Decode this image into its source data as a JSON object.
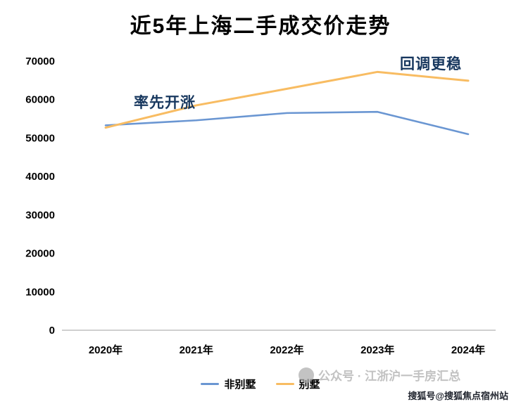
{
  "title": "近5年上海二手成交价走势",
  "annotations": {
    "rise": "率先开涨",
    "stable": "回调更稳"
  },
  "legend": {
    "non_villa_label": "非别墅",
    "villa_label": "别墅"
  },
  "watermarks": {
    "center": "公众号 · 江浙沪一手房汇总",
    "corner": "搜狐号@搜狐焦点宿州站"
  },
  "colors": {
    "non_villa": "#6A96D2",
    "villa": "#F8BC62",
    "annotation": "#17375E",
    "axis": "#BFBFBF"
  },
  "chart_data": {
    "type": "line",
    "title": "近5年上海二手成交价走势",
    "categories": [
      "2020年",
      "2021年",
      "2022年",
      "2023年",
      "2024年"
    ],
    "series": [
      {
        "name": "非别墅",
        "color": "#6A96D2",
        "values": [
          53300,
          54600,
          56500,
          56800,
          51000
        ]
      },
      {
        "name": "别墅",
        "color": "#F8BC62",
        "values": [
          52700,
          58500,
          62800,
          67200,
          64900
        ]
      }
    ],
    "xlabel": "",
    "ylabel": "",
    "ylim": [
      0,
      70000
    ],
    "yticks": [
      0,
      10000,
      20000,
      30000,
      40000,
      50000,
      60000,
      70000
    ],
    "grid": false,
    "legend_position": "bottom"
  }
}
